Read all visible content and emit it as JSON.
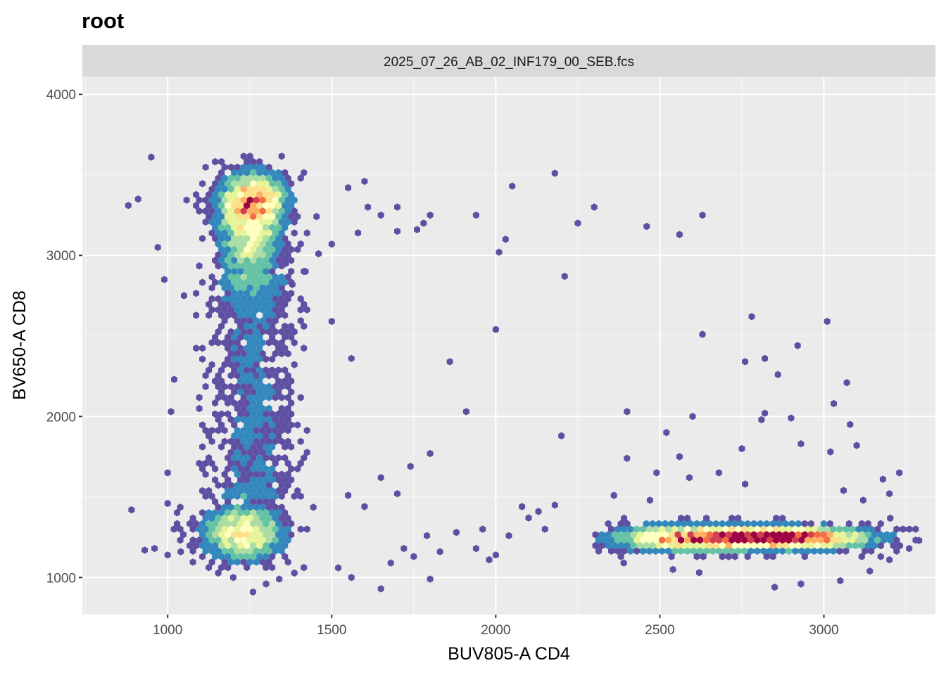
{
  "plot_title": "root",
  "facet_label": "2025_07_26_AB_02_INF179_00_SEB.fcs",
  "colors": {
    "panel_bg": "#ebebeb",
    "strip_bg": "#d9d9d9",
    "grid_major": "#ffffff",
    "palette": [
      "#5e4fa2",
      "#3288bd",
      "#66c2a5",
      "#abdda4",
      "#e6f598",
      "#ffffbf",
      "#fee08b",
      "#fdae61",
      "#f46d43",
      "#d53e4f",
      "#9e0142"
    ]
  },
  "chart_data": {
    "type": "heatmap",
    "geometry": "hexbin density",
    "title": "root",
    "facet": "2025_07_26_AB_02_INF179_00_SEB.fcs",
    "xlabel": "BUV805-A CD4",
    "ylabel": "BV650-A CD8",
    "xlim": [
      740,
      3340
    ],
    "ylim": [
      770,
      4110
    ],
    "x_ticks": [
      1000,
      1500,
      2000,
      2500,
      3000
    ],
    "y_ticks": [
      1000,
      2000,
      3000,
      4000
    ],
    "grid": true,
    "legend": "none",
    "populations": [
      {
        "cx": 1260,
        "cy": 3340,
        "sx": 65,
        "sy": 115,
        "weight": 1.0,
        "extent": [
          1040,
          1460,
          2950,
          3640
        ]
      },
      {
        "cx": 1250,
        "cy": 3050,
        "sx": 60,
        "sy": 160,
        "weight": 0.55,
        "extent": [
          1050,
          1450,
          2650,
          3400
        ]
      },
      {
        "cx": 1230,
        "cy": 1280,
        "sx": 80,
        "sy": 110,
        "weight": 0.75,
        "extent": [
          1000,
          1600,
          900,
          1650
        ]
      },
      {
        "cx": 2870,
        "cy": 1245,
        "sx": 170,
        "sy": 45,
        "weight": 1.35,
        "extent": [
          2380,
          3280,
          1000,
          1500
        ]
      },
      {
        "cx": 2560,
        "cy": 1245,
        "sx": 140,
        "sy": 55,
        "weight": 0.8,
        "extent": [
          2300,
          3000,
          1050,
          1450
        ]
      }
    ],
    "scattered_points": [
      [
        2180,
        3510
      ],
      [
        2050,
        3430
      ],
      [
        2300,
        3300
      ],
      [
        2630,
        3250
      ],
      [
        2250,
        3200
      ],
      [
        2460,
        3180
      ],
      [
        2560,
        3130
      ],
      [
        2210,
        2870
      ],
      [
        2010,
        3020
      ],
      [
        2030,
        3100
      ],
      [
        2780,
        2620
      ],
      [
        3010,
        2590
      ],
      [
        2630,
        2510
      ],
      [
        2920,
        2440
      ],
      [
        2820,
        2360
      ],
      [
        2760,
        2340
      ],
      [
        2860,
        2260
      ],
      [
        3070,
        2210
      ],
      [
        1860,
        2340
      ],
      [
        1560,
        2360
      ],
      [
        1500,
        2590
      ],
      [
        2000,
        2540
      ],
      [
        1910,
        2030
      ],
      [
        2400,
        2030
      ],
      [
        2600,
        2000
      ],
      [
        2820,
        2020
      ],
      [
        2900,
        1990
      ],
      [
        2810,
        1980
      ],
      [
        3030,
        2080
      ],
      [
        3080,
        1950
      ],
      [
        2200,
        1880
      ],
      [
        2520,
        1900
      ],
      [
        2400,
        1740
      ],
      [
        2560,
        1750
      ],
      [
        2750,
        1800
      ],
      [
        2930,
        1830
      ],
      [
        3100,
        1820
      ],
      [
        3020,
        1780
      ],
      [
        1800,
        1770
      ],
      [
        1740,
        1690
      ],
      [
        1650,
        1620
      ],
      [
        1700,
        1520
      ],
      [
        1550,
        1510
      ],
      [
        1600,
        1440
      ],
      [
        2490,
        1650
      ],
      [
        2590,
        1620
      ],
      [
        2680,
        1650
      ],
      [
        2760,
        1580
      ],
      [
        3230,
        1650
      ],
      [
        3180,
        1610
      ],
      [
        2130,
        1410
      ],
      [
        2180,
        1450
      ],
      [
        1880,
        1280
      ],
      [
        1960,
        1300
      ],
      [
        2040,
        1260
      ],
      [
        2000,
        1140
      ],
      [
        1980,
        1110
      ],
      [
        1940,
        1180
      ],
      [
        1830,
        1160
      ],
      [
        1750,
        1130
      ],
      [
        1800,
        990
      ],
      [
        1650,
        930
      ],
      [
        1560,
        1000
      ],
      [
        1520,
        1060
      ],
      [
        1340,
        990
      ],
      [
        1300,
        960
      ],
      [
        1260,
        910
      ],
      [
        1200,
        1000
      ],
      [
        1040,
        1160
      ],
      [
        1000,
        1140
      ],
      [
        960,
        1180
      ],
      [
        930,
        1170
      ],
      [
        890,
        1420
      ],
      [
        1000,
        1460
      ],
      [
        1000,
        1650
      ],
      [
        1010,
        2030
      ],
      [
        1020,
        2230
      ],
      [
        880,
        3310
      ],
      [
        910,
        3350
      ],
      [
        950,
        3610
      ],
      [
        970,
        3050
      ],
      [
        990,
        2850
      ],
      [
        1050,
        2750
      ],
      [
        1550,
        3420
      ],
      [
        1600,
        3460
      ],
      [
        1650,
        3250
      ],
      [
        1700,
        3300
      ],
      [
        1780,
        3200
      ],
      [
        1760,
        3160
      ],
      [
        1800,
        3250
      ],
      [
        1700,
        3150
      ],
      [
        1940,
        3250
      ],
      [
        1610,
        3300
      ],
      [
        1580,
        3140
      ],
      [
        1500,
        3070
      ],
      [
        1460,
        3010
      ],
      [
        1360,
        2950
      ],
      [
        1420,
        2900
      ],
      [
        1380,
        2820
      ],
      [
        2080,
        1440
      ],
      [
        2100,
        1370
      ],
      [
        2150,
        1300
      ],
      [
        2360,
        1510
      ],
      [
        3060,
        1540
      ],
      [
        3120,
        1480
      ],
      [
        3200,
        1520
      ],
      [
        2470,
        1480
      ],
      [
        2390,
        1090
      ],
      [
        2540,
        1050
      ],
      [
        2620,
        1030
      ],
      [
        2850,
        940
      ],
      [
        2930,
        960
      ],
      [
        3050,
        980
      ],
      [
        3140,
        1040
      ],
      [
        3200,
        1110
      ],
      [
        3260,
        1180
      ],
      [
        3290,
        1230
      ],
      [
        1680,
        1090
      ],
      [
        1720,
        1180
      ],
      [
        1790,
        1260
      ]
    ]
  }
}
